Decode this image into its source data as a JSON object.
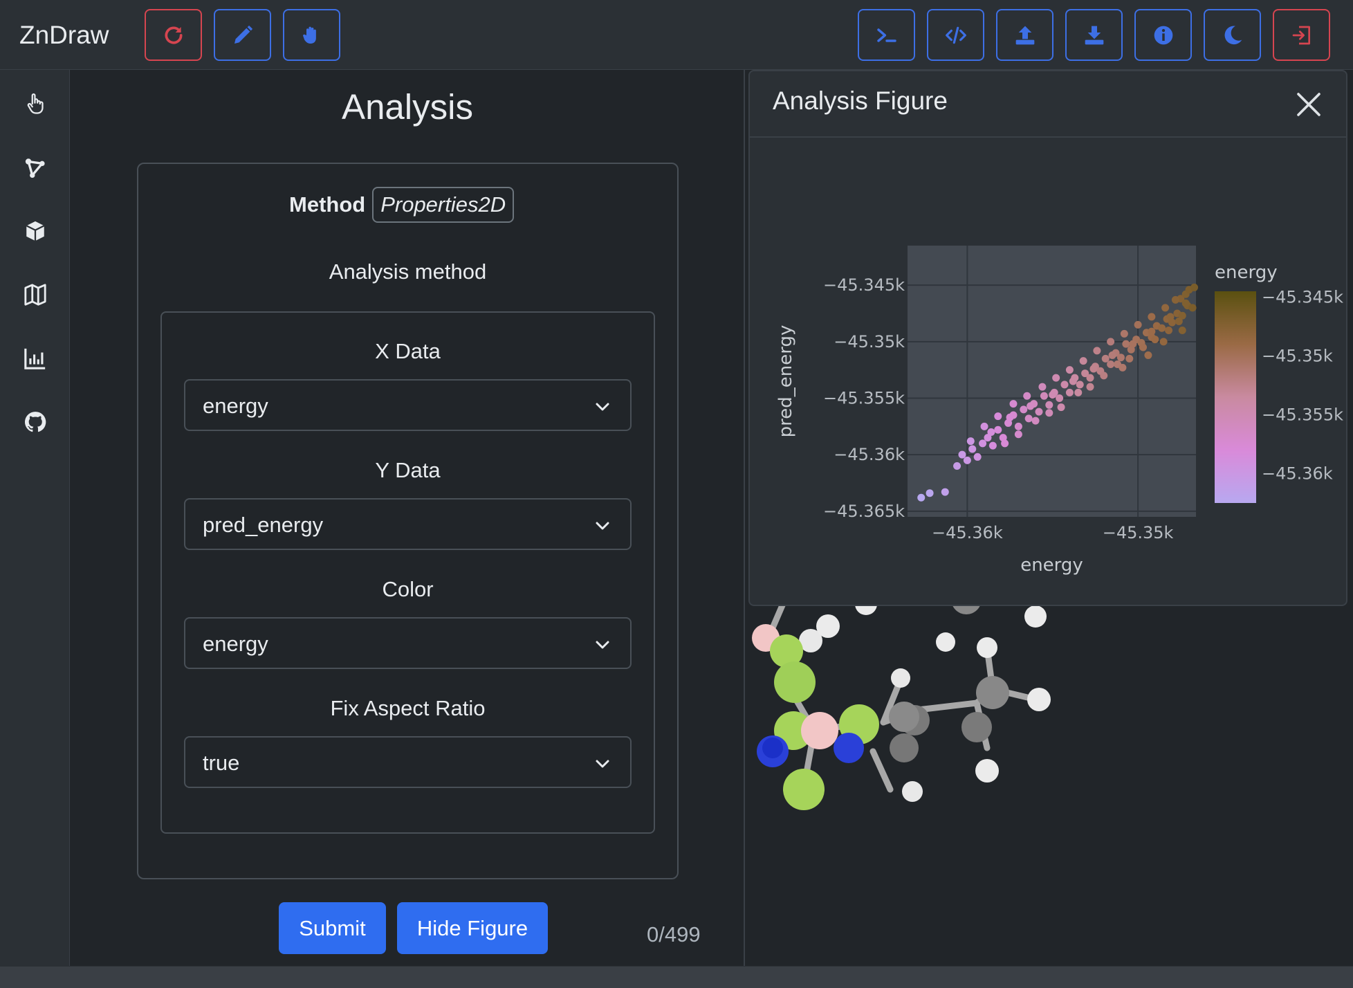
{
  "app": {
    "title": "ZnDraw"
  },
  "navbar": {
    "left_buttons": [
      {
        "name": "refresh-button",
        "icon": "refresh-icon"
      },
      {
        "name": "draw-button",
        "icon": "pencil-icon"
      },
      {
        "name": "interaction-button",
        "icon": "hand-icon"
      }
    ],
    "right_buttons": [
      {
        "name": "terminal-button",
        "icon": "terminal-icon"
      },
      {
        "name": "code-button",
        "icon": "code-icon"
      },
      {
        "name": "upload-button",
        "icon": "upload-icon"
      },
      {
        "name": "download-button",
        "icon": "download-icon"
      },
      {
        "name": "info-button",
        "icon": "info-icon"
      },
      {
        "name": "theme-button",
        "icon": "moon-icon"
      },
      {
        "name": "logout-button",
        "icon": "exit-icon"
      }
    ]
  },
  "sidebar": {
    "items": [
      {
        "name": "selection",
        "icon": "pointer-hand-icon"
      },
      {
        "name": "interaction",
        "icon": "nodes-icon"
      },
      {
        "name": "geometry",
        "icon": "cube-icon"
      },
      {
        "name": "scene",
        "icon": "map-icon"
      },
      {
        "name": "analysis",
        "icon": "bar-chart-icon"
      },
      {
        "name": "github",
        "icon": "github-icon"
      }
    ]
  },
  "analysis": {
    "title": "Analysis",
    "method_label": "Method",
    "method_value": "Properties2D",
    "section_title": "Analysis method",
    "fields": [
      {
        "label": "X Data",
        "value": "energy"
      },
      {
        "label": "Y Data",
        "value": "pred_energy"
      },
      {
        "label": "Color",
        "value": "energy"
      },
      {
        "label": "Fix Aspect Ratio",
        "value": "true"
      }
    ],
    "submit_label": "Submit",
    "hide_label": "Hide Figure",
    "counter": "0/499"
  },
  "figure": {
    "title": "Analysis Figure"
  },
  "chart_data": {
    "type": "scatter",
    "xlabel": "energy",
    "ylabel": "pred_energy",
    "xlim": [
      -45.3635,
      -45.3466
    ],
    "ylim": [
      -45.3655,
      -45.3415
    ],
    "x_ticks": [
      {
        "v": -45.36,
        "label": "−45.36k"
      },
      {
        "v": -45.35,
        "label": "−45.35k"
      }
    ],
    "y_ticks": [
      {
        "v": -45.345,
        "label": "−45.345k"
      },
      {
        "v": -45.35,
        "label": "−45.35k"
      },
      {
        "v": -45.355,
        "label": "−45.355k"
      },
      {
        "v": -45.36,
        "label": "−45.36k"
      },
      {
        "v": -45.365,
        "label": "−45.365k"
      }
    ],
    "colorbar": {
      "title": "energy",
      "range": [
        -45.3625,
        -45.3445
      ],
      "ticks": [
        {
          "v": -45.345,
          "label": "−45.345k"
        },
        {
          "v": -45.35,
          "label": "−45.35k"
        },
        {
          "v": -45.355,
          "label": "−45.355k"
        },
        {
          "v": -45.36,
          "label": "−45.36k"
        }
      ],
      "colors": [
        "#b8a8f0",
        "#d98ad9",
        "#c98aa0",
        "#9a6a45",
        "#5a5010"
      ]
    },
    "background": "#444a52",
    "grid": true,
    "points": [
      [
        -45.3627,
        -45.3638
      ],
      [
        -45.3622,
        -45.3634
      ],
      [
        -45.3613,
        -45.3633
      ],
      [
        -45.3606,
        -45.361
      ],
      [
        -45.3603,
        -45.36
      ],
      [
        -45.36,
        -45.3605
      ],
      [
        -45.3597,
        -45.3595
      ],
      [
        -45.3594,
        -45.3602
      ],
      [
        -45.3591,
        -45.359
      ],
      [
        -45.3588,
        -45.3585
      ],
      [
        -45.3585,
        -45.3592
      ],
      [
        -45.3582,
        -45.3578
      ],
      [
        -45.3579,
        -45.3585
      ],
      [
        -45.3576,
        -45.3572
      ],
      [
        -45.3573,
        -45.3565
      ],
      [
        -45.357,
        -45.3575
      ],
      [
        -45.3567,
        -45.356
      ],
      [
        -45.3564,
        -45.3568
      ],
      [
        -45.3561,
        -45.3555
      ],
      [
        -45.3558,
        -45.3562
      ],
      [
        -45.3555,
        -45.3548
      ],
      [
        -45.3552,
        -45.3556
      ],
      [
        -45.3549,
        -45.3545
      ],
      [
        -45.3546,
        -45.355
      ],
      [
        -45.3543,
        -45.3538
      ],
      [
        -45.354,
        -45.3545
      ],
      [
        -45.3537,
        -45.3532
      ],
      [
        -45.3534,
        -45.3538
      ],
      [
        -45.3531,
        -45.3528
      ],
      [
        -45.3528,
        -45.3532
      ],
      [
        -45.3525,
        -45.3522
      ],
      [
        -45.3522,
        -45.3526
      ],
      [
        -45.3519,
        -45.3515
      ],
      [
        -45.3516,
        -45.352
      ],
      [
        -45.3513,
        -45.351
      ],
      [
        -45.351,
        -45.3514
      ],
      [
        -45.3507,
        -45.3502
      ],
      [
        -45.3504,
        -45.3507
      ],
      [
        -45.3501,
        -45.3498
      ],
      [
        -45.3498,
        -45.3501
      ],
      [
        -45.3495,
        -45.3492
      ],
      [
        -45.3492,
        -45.3496
      ],
      [
        -45.3489,
        -45.3486
      ],
      [
        -45.3486,
        -45.3488
      ],
      [
        -45.3483,
        -45.348
      ],
      [
        -45.348,
        -45.3483
      ],
      [
        -45.3477,
        -45.3475
      ],
      [
        -45.3474,
        -45.3477
      ],
      [
        -45.3471,
        -45.3468
      ],
      [
        -45.3468,
        -45.347
      ],
      [
        -45.3475,
        -45.3462
      ],
      [
        -45.3472,
        -45.3458
      ],
      [
        -45.347,
        -45.3454
      ],
      [
        -45.3467,
        -45.3452
      ],
      [
        -45.3578,
        -45.359
      ],
      [
        -45.357,
        -45.3582
      ],
      [
        -45.356,
        -45.357
      ],
      [
        -45.3552,
        -45.3563
      ],
      [
        -45.3545,
        -45.3558
      ],
      [
        -45.3535,
        -45.3545
      ],
      [
        -45.3528,
        -45.354
      ],
      [
        -45.352,
        -45.353
      ],
      [
        -45.3512,
        -45.352
      ],
      [
        -45.3505,
        -45.3515
      ],
      [
        -45.3497,
        -45.3505
      ],
      [
        -45.349,
        -45.3498
      ],
      [
        -45.3482,
        -45.349
      ],
      [
        -45.3476,
        -45.3482
      ],
      [
        -45.359,
        -45.3575
      ],
      [
        -45.3582,
        -45.3566
      ],
      [
        -45.3573,
        -45.3555
      ],
      [
        -45.3565,
        -45.3548
      ],
      [
        -45.3556,
        -45.354
      ],
      [
        -45.3548,
        -45.3532
      ],
      [
        -45.354,
        -45.3525
      ],
      [
        -45.3532,
        -45.3517
      ],
      [
        -45.3524,
        -45.3508
      ],
      [
        -45.3516,
        -45.35
      ],
      [
        -45.3508,
        -45.3493
      ],
      [
        -45.35,
        -45.3485
      ],
      [
        -45.3492,
        -45.3478
      ],
      [
        -45.3484,
        -45.347
      ],
      [
        -45.3478,
        -45.3463
      ],
      [
        -45.3598,
        -45.3588
      ],
      [
        -45.3586,
        -45.358
      ],
      [
        -45.3575,
        -45.3567
      ],
      [
        -45.3563,
        -45.3557
      ],
      [
        -45.355,
        -45.3547
      ],
      [
        -45.3538,
        -45.3535
      ],
      [
        -45.3526,
        -45.3524
      ],
      [
        -45.3515,
        -45.3512
      ],
      [
        -45.3503,
        -45.3502
      ],
      [
        -45.3492,
        -45.3491
      ],
      [
        -45.3481,
        -45.3478
      ],
      [
        -45.3472,
        -45.3466
      ],
      [
        -45.3509,
        -45.3523
      ],
      [
        -45.3494,
        -45.3512
      ],
      [
        -45.3485,
        -45.35
      ],
      [
        -45.3474,
        -45.349
      ]
    ]
  }
}
